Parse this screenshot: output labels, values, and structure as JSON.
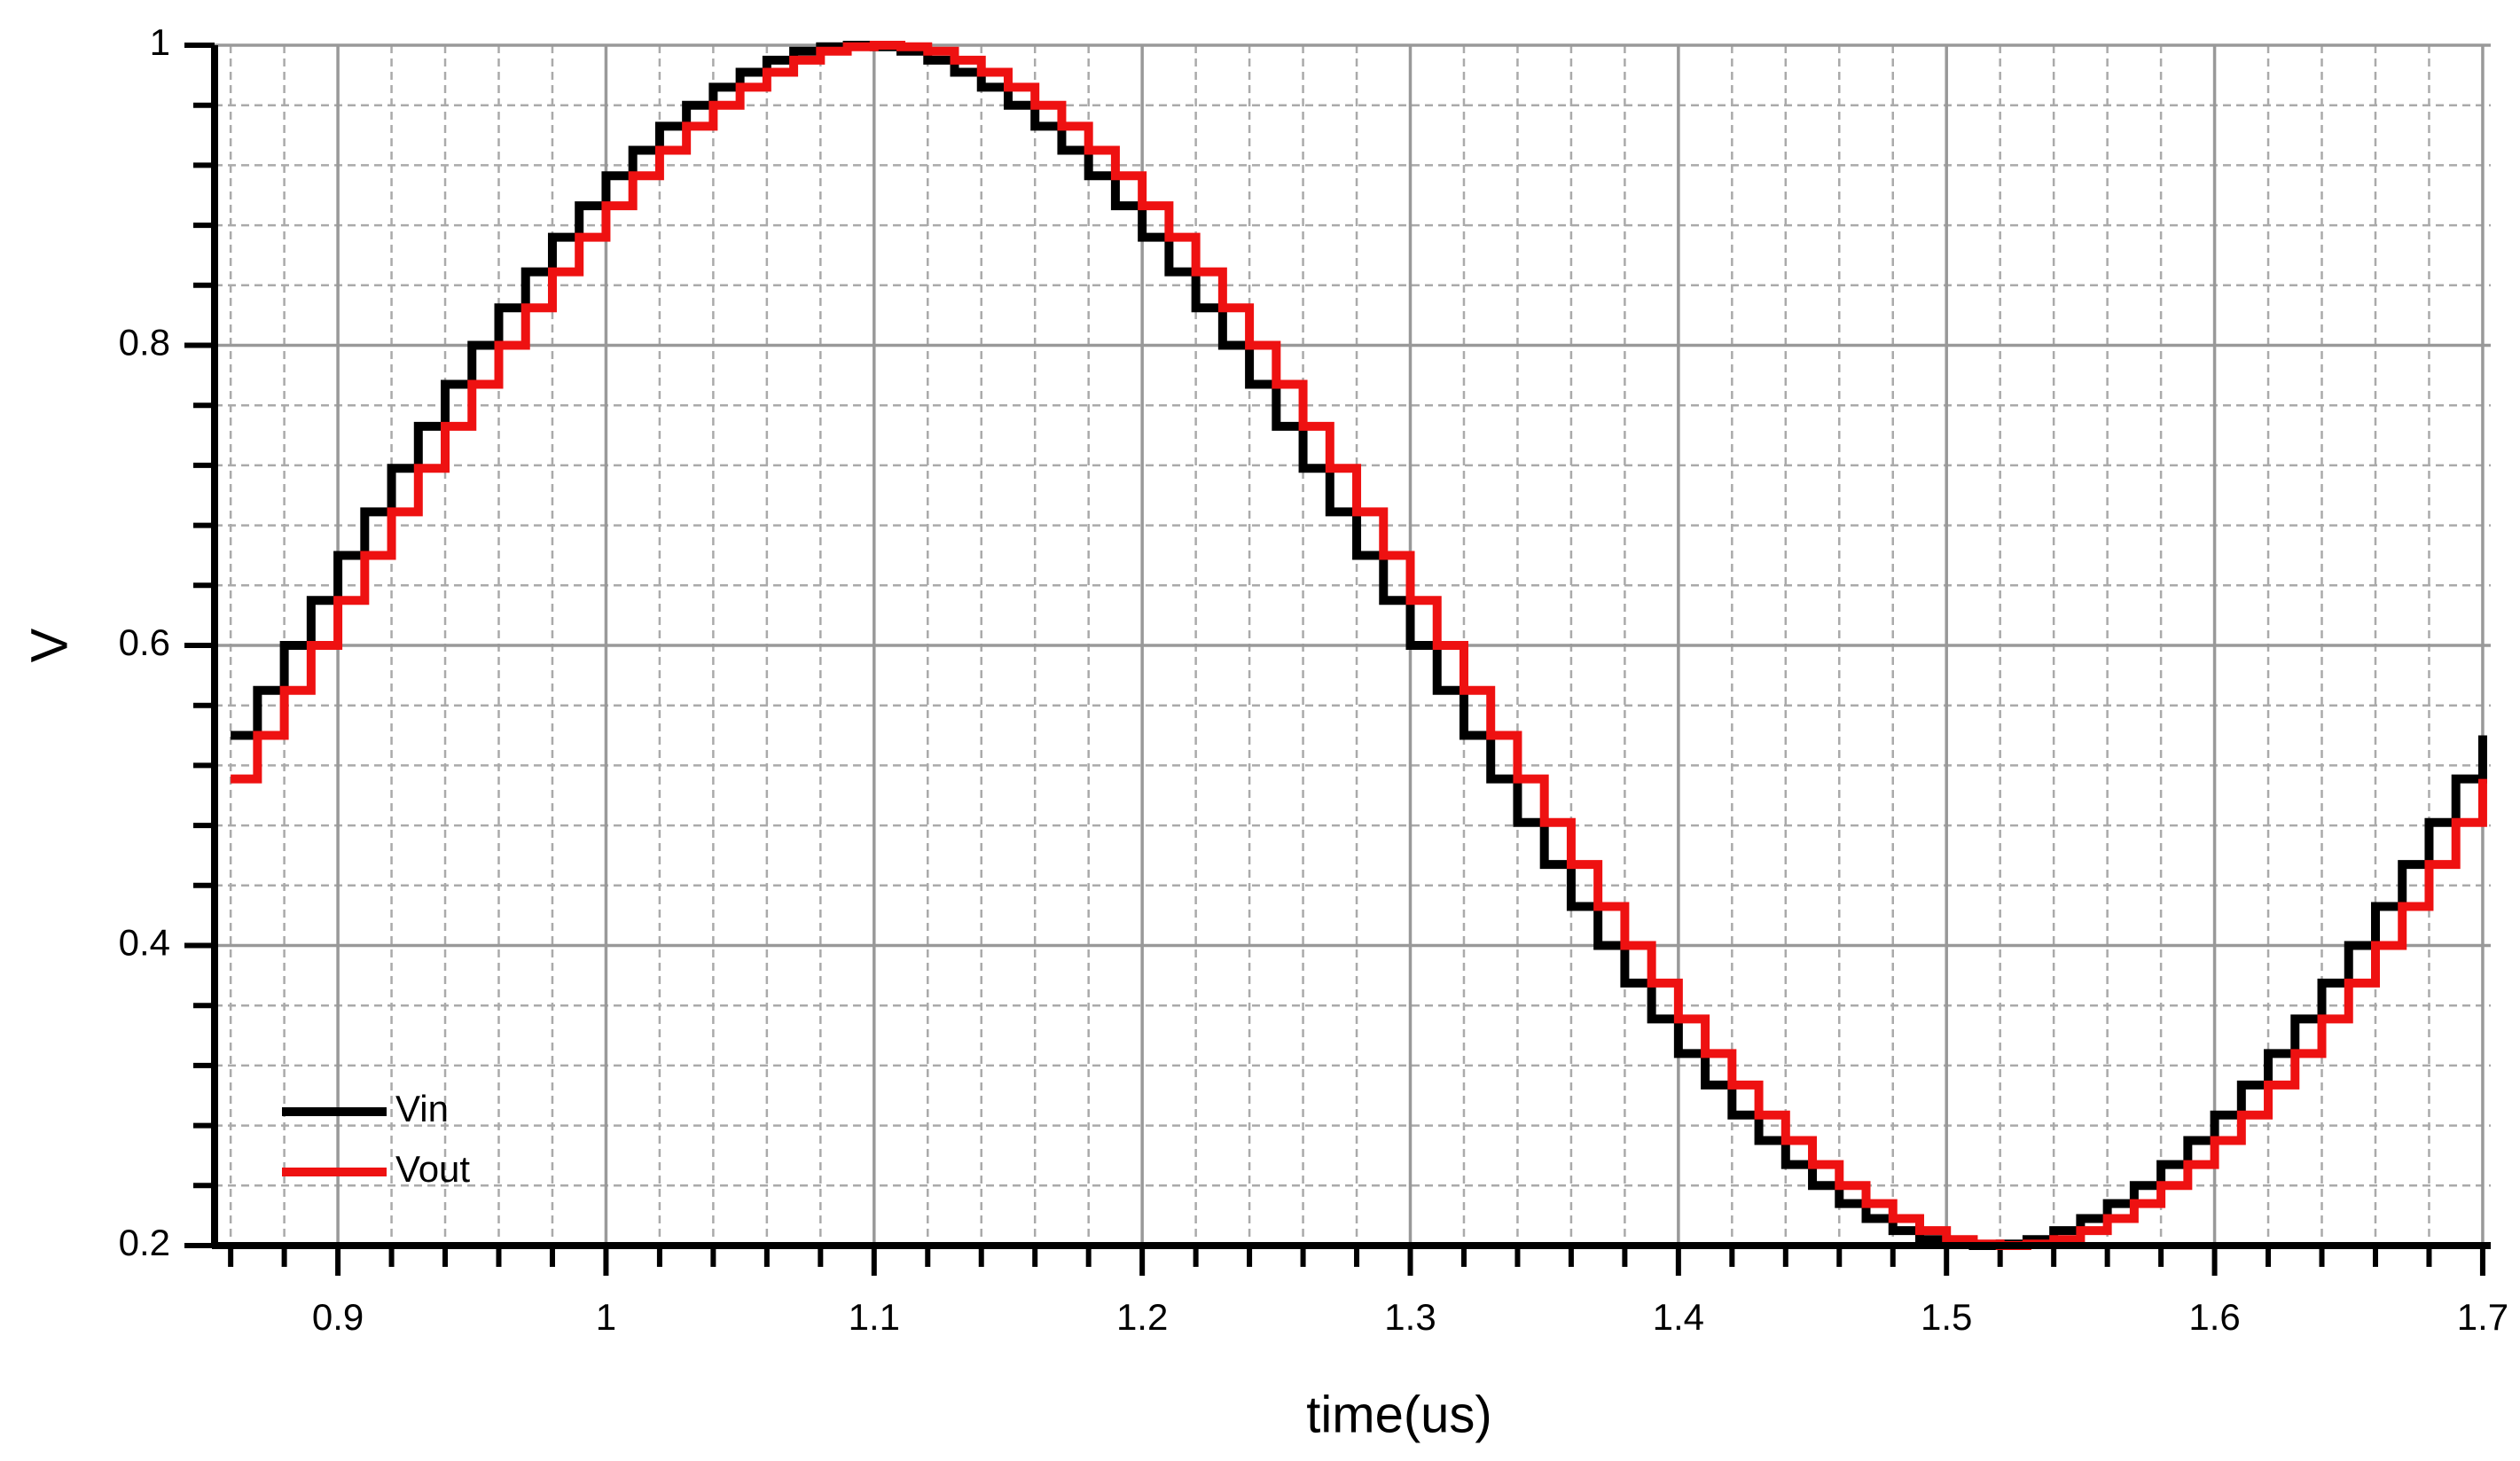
{
  "chart_data": {
    "type": "step-line",
    "xlabel": "time(us)",
    "ylabel": "V",
    "xlim": [
      0.854,
      1.703
    ],
    "ylim": [
      0.2,
      1
    ],
    "xticks": [
      0.9,
      1,
      1.1,
      1.2,
      1.3,
      1.4,
      1.5,
      1.6,
      1.7
    ],
    "yticks": [
      0.2,
      0.4,
      0.6,
      0.8,
      1
    ],
    "xminorticks": [
      0.86,
      0.88,
      0.92,
      0.94,
      0.96,
      0.98,
      1.02,
      1.04,
      1.06,
      1.08,
      1.12,
      1.14,
      1.16,
      1.18,
      1.22,
      1.24,
      1.26,
      1.28,
      1.32,
      1.34,
      1.36,
      1.38,
      1.42,
      1.44,
      1.46,
      1.48,
      1.52,
      1.54,
      1.56,
      1.58,
      1.62,
      1.64,
      1.66,
      1.68
    ],
    "yminorticks": [
      0.24,
      0.28,
      0.32,
      0.36,
      0.44,
      0.48,
      0.52,
      0.56,
      0.64,
      0.68,
      0.72,
      0.76,
      0.84,
      0.88,
      0.92,
      0.96
    ],
    "grid": true,
    "legend": "lower left",
    "x": [
      0.86,
      0.87,
      0.88,
      0.89,
      0.9,
      0.91,
      0.92,
      0.93,
      0.94,
      0.95,
      0.96,
      0.97,
      0.98,
      0.99,
      1,
      1.01,
      1.02,
      1.03,
      1.04,
      1.05,
      1.06,
      1.07,
      1.08,
      1.09,
      1.1,
      1.11,
      1.12,
      1.13,
      1.14,
      1.15,
      1.16,
      1.17,
      1.18,
      1.19,
      1.2,
      1.21,
      1.22,
      1.23,
      1.24,
      1.25,
      1.26,
      1.27,
      1.28,
      1.29,
      1.3,
      1.31,
      1.32,
      1.33,
      1.34,
      1.35,
      1.36,
      1.37,
      1.38,
      1.39,
      1.4,
      1.41,
      1.42,
      1.43,
      1.44,
      1.45,
      1.46,
      1.47,
      1.48,
      1.49,
      1.5,
      1.51,
      1.52,
      1.53,
      1.54,
      1.55,
      1.56,
      1.57,
      1.58,
      1.59,
      1.6,
      1.61,
      1.62,
      1.63,
      1.64,
      1.65,
      1.66,
      1.67,
      1.68,
      1.69,
      1.7
    ],
    "series": [
      {
        "name": "Vin",
        "color": "#000000",
        "values": [
          0.54,
          0.57,
          0.6,
          0.63,
          0.66,
          0.689,
          0.718,
          0.746,
          0.774,
          0.8,
          0.825,
          0.849,
          0.872,
          0.893,
          0.913,
          0.93,
          0.946,
          0.96,
          0.972,
          0.982,
          0.99,
          0.996,
          0.999,
          1,
          0.999,
          0.996,
          0.99,
          0.982,
          0.972,
          0.96,
          0.946,
          0.93,
          0.913,
          0.893,
          0.872,
          0.849,
          0.825,
          0.8,
          0.774,
          0.746,
          0.718,
          0.689,
          0.66,
          0.63,
          0.6,
          0.57,
          0.54,
          0.511,
          0.482,
          0.454,
          0.426,
          0.4,
          0.375,
          0.351,
          0.328,
          0.307,
          0.287,
          0.27,
          0.254,
          0.24,
          0.228,
          0.218,
          0.21,
          0.204,
          0.201,
          0.2,
          0.201,
          0.204,
          0.21,
          0.218,
          0.228,
          0.24,
          0.254,
          0.27,
          0.287,
          0.307,
          0.328,
          0.351,
          0.375,
          0.4,
          0.426,
          0.454,
          0.482,
          0.511,
          0.54
        ]
      },
      {
        "name": "Vout",
        "color": "#ee1111",
        "values": [
          0.511,
          0.54,
          0.57,
          0.6,
          0.63,
          0.66,
          0.689,
          0.718,
          0.746,
          0.774,
          0.8,
          0.825,
          0.849,
          0.872,
          0.893,
          0.913,
          0.93,
          0.946,
          0.96,
          0.972,
          0.982,
          0.99,
          0.996,
          0.999,
          1,
          0.999,
          0.996,
          0.99,
          0.982,
          0.972,
          0.96,
          0.946,
          0.93,
          0.913,
          0.893,
          0.872,
          0.849,
          0.825,
          0.8,
          0.774,
          0.746,
          0.718,
          0.689,
          0.66,
          0.63,
          0.6,
          0.57,
          0.54,
          0.511,
          0.482,
          0.454,
          0.426,
          0.4,
          0.375,
          0.351,
          0.328,
          0.307,
          0.287,
          0.27,
          0.254,
          0.24,
          0.228,
          0.218,
          0.21,
          0.204,
          0.201,
          0.2,
          0.201,
          0.204,
          0.21,
          0.218,
          0.228,
          0.24,
          0.254,
          0.27,
          0.287,
          0.307,
          0.328,
          0.351,
          0.375,
          0.4,
          0.426,
          0.454,
          0.482,
          0.511
        ]
      }
    ]
  }
}
